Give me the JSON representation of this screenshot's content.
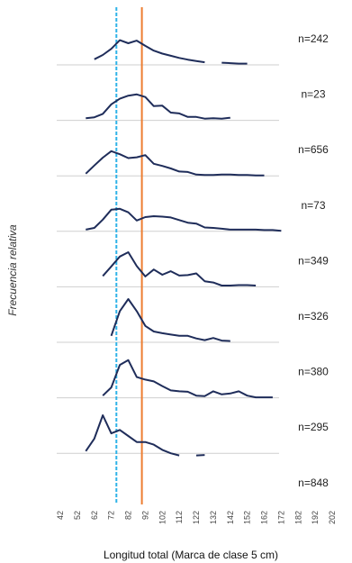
{
  "chart_data": {
    "type": "line",
    "title": "",
    "xlabel": "Longitud total (Marca de clase 5 cm)",
    "ylabel": "Frecuencia relativa",
    "x_ticks": [
      "42",
      "52",
      "62",
      "72",
      "82",
      "92",
      "102",
      "112",
      "122",
      "132",
      "142",
      "152",
      "162",
      "172",
      "182",
      "192",
      "202"
    ],
    "xlim": [
      42,
      202
    ],
    "reference_lines": [
      {
        "x": 75,
        "color": "#2eb3e8",
        "style": "dashed"
      },
      {
        "x": 90,
        "color": "#ed7d31",
        "style": "solid"
      }
    ],
    "line_color": "#1f2d5a",
    "series": [
      {
        "name": "n=242",
        "points": [
          [
            62,
            0.13
          ],
          [
            67,
            0.23
          ],
          [
            72,
            0.37
          ],
          [
            77,
            0.57
          ],
          [
            82,
            0.5
          ],
          [
            87,
            0.56
          ],
          [
            92,
            0.44
          ],
          [
            97,
            0.33
          ],
          [
            102,
            0.26
          ],
          [
            107,
            0.21
          ],
          [
            112,
            0.16
          ],
          [
            117,
            0.12
          ],
          [
            122,
            0.09
          ],
          [
            127,
            0.06
          ],
          [
            null,
            null
          ],
          [
            137,
            0.05
          ],
          [
            142,
            0.04
          ],
          [
            147,
            0.03
          ],
          [
            152,
            0.03
          ]
        ]
      },
      {
        "name": "n=23",
        "points": [
          [
            57,
            0.05
          ],
          [
            62,
            0.07
          ],
          [
            67,
            0.15
          ],
          [
            72,
            0.37
          ],
          [
            77,
            0.5
          ],
          [
            82,
            0.57
          ],
          [
            87,
            0.6
          ],
          [
            92,
            0.54
          ],
          [
            97,
            0.33
          ],
          [
            102,
            0.34
          ],
          [
            107,
            0.18
          ],
          [
            112,
            0.16
          ],
          [
            117,
            0.08
          ],
          [
            122,
            0.08
          ],
          [
            127,
            0.04
          ],
          [
            132,
            0.05
          ],
          [
            137,
            0.04
          ],
          [
            142,
            0.06
          ]
        ]
      },
      {
        "name": "n=656",
        "points": [
          [
            57,
            0.05
          ],
          [
            62,
            0.24
          ],
          [
            67,
            0.42
          ],
          [
            72,
            0.57
          ],
          [
            77,
            0.5
          ],
          [
            82,
            0.41
          ],
          [
            87,
            0.43
          ],
          [
            92,
            0.48
          ],
          [
            97,
            0.28
          ],
          [
            102,
            0.23
          ],
          [
            107,
            0.17
          ],
          [
            112,
            0.1
          ],
          [
            117,
            0.09
          ],
          [
            122,
            0.03
          ],
          [
            127,
            0.02
          ],
          [
            132,
            0.02
          ],
          [
            137,
            0.03
          ],
          [
            142,
            0.03
          ],
          [
            147,
            0.02
          ],
          [
            152,
            0.02
          ],
          [
            157,
            0.01
          ],
          [
            162,
            0.01
          ]
        ]
      },
      {
        "name": "n=73",
        "points": [
          [
            57,
            0.04
          ],
          [
            62,
            0.08
          ],
          [
            67,
            0.27
          ],
          [
            72,
            0.5
          ],
          [
            77,
            0.52
          ],
          [
            82,
            0.44
          ],
          [
            87,
            0.25
          ],
          [
            92,
            0.33
          ],
          [
            97,
            0.35
          ],
          [
            102,
            0.34
          ],
          [
            107,
            0.32
          ],
          [
            112,
            0.26
          ],
          [
            117,
            0.2
          ],
          [
            122,
            0.18
          ],
          [
            127,
            0.09
          ],
          [
            132,
            0.08
          ],
          [
            137,
            0.06
          ],
          [
            142,
            0.04
          ],
          [
            147,
            0.04
          ],
          [
            152,
            0.04
          ],
          [
            157,
            0.04
          ],
          [
            162,
            0.03
          ],
          [
            167,
            0.03
          ],
          [
            172,
            0.01
          ]
        ]
      },
      {
        "name": "n=349",
        "points": [
          [
            67,
            0.25
          ],
          [
            72,
            0.47
          ],
          [
            77,
            0.7
          ],
          [
            82,
            0.8
          ],
          [
            87,
            0.48
          ],
          [
            92,
            0.24
          ],
          [
            97,
            0.4
          ],
          [
            102,
            0.28
          ],
          [
            107,
            0.36
          ],
          [
            112,
            0.26
          ],
          [
            117,
            0.27
          ],
          [
            122,
            0.31
          ],
          [
            127,
            0.13
          ],
          [
            132,
            0.1
          ],
          [
            137,
            0.03
          ],
          [
            142,
            0.03
          ],
          [
            147,
            0.04
          ],
          [
            152,
            0.04
          ],
          [
            157,
            0.03
          ]
        ]
      },
      {
        "name": "n=326",
        "points": [
          [
            72,
            0.15
          ],
          [
            77,
            0.72
          ],
          [
            82,
            1.0
          ],
          [
            87,
            0.72
          ],
          [
            92,
            0.38
          ],
          [
            97,
            0.25
          ],
          [
            102,
            0.21
          ],
          [
            107,
            0.18
          ],
          [
            112,
            0.15
          ],
          [
            117,
            0.15
          ],
          [
            122,
            0.09
          ],
          [
            127,
            0.05
          ],
          [
            132,
            0.1
          ],
          [
            137,
            0.04
          ],
          [
            142,
            0.03
          ]
        ]
      },
      {
        "name": "n=380",
        "points": [
          [
            67,
            0.05
          ],
          [
            72,
            0.24
          ],
          [
            77,
            0.76
          ],
          [
            82,
            0.87
          ],
          [
            87,
            0.48
          ],
          [
            92,
            0.42
          ],
          [
            97,
            0.38
          ],
          [
            102,
            0.27
          ],
          [
            107,
            0.17
          ],
          [
            112,
            0.15
          ],
          [
            117,
            0.14
          ],
          [
            122,
            0.05
          ],
          [
            127,
            0.04
          ],
          [
            132,
            0.15
          ],
          [
            137,
            0.08
          ],
          [
            142,
            0.1
          ],
          [
            147,
            0.15
          ],
          [
            152,
            0.05
          ],
          [
            157,
            0.01
          ],
          [
            162,
            0.01
          ],
          [
            167,
            0.01
          ]
        ]
      },
      {
        "name": "n=295",
        "points": [
          [
            57,
            0.05
          ],
          [
            62,
            0.34
          ],
          [
            67,
            0.88
          ],
          [
            72,
            0.46
          ],
          [
            77,
            0.54
          ],
          [
            82,
            0.4
          ],
          [
            87,
            0.26
          ],
          [
            92,
            0.26
          ],
          [
            97,
            0.2
          ],
          [
            102,
            0.08
          ],
          [
            107,
            0.0
          ],
          [
            112,
            -0.05
          ],
          [
            null,
            null
          ],
          [
            122,
            -0.05
          ],
          [
            127,
            -0.04
          ]
        ]
      },
      {
        "name": "n=848",
        "points": []
      }
    ]
  }
}
